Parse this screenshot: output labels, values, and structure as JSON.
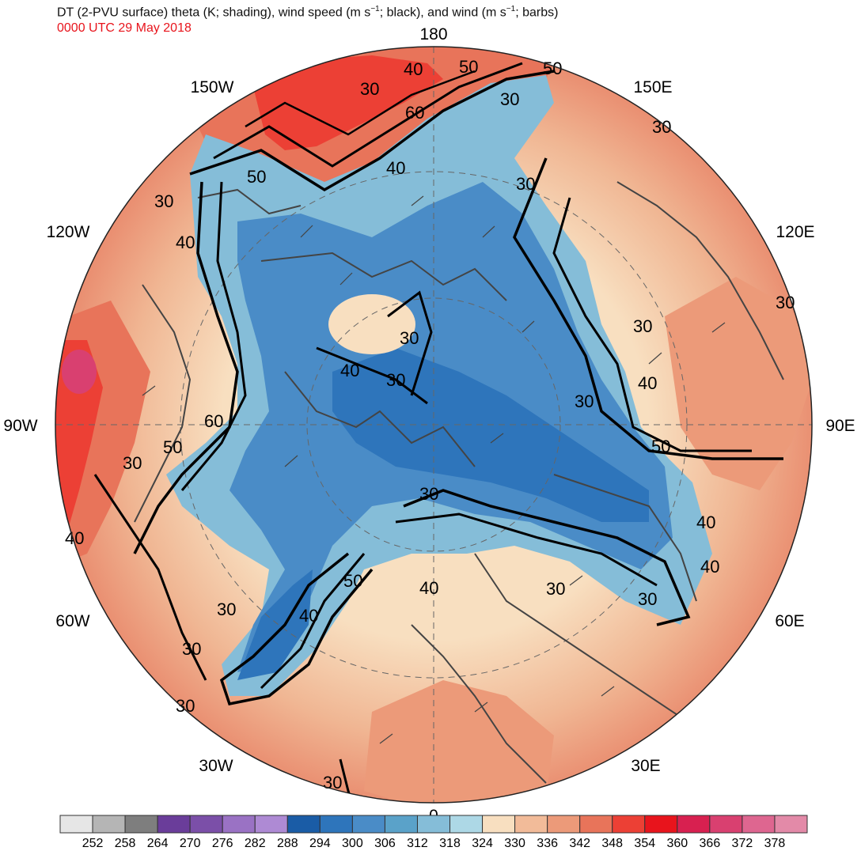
{
  "title": {
    "prefix": "DT (2-PVU surface) theta (K; shading), wind speed (m s",
    "exp1": "−1",
    "middle": "; black), and wind (m s",
    "exp2": "−1",
    "suffix": "; barbs)"
  },
  "valid_time": "0000 UTC 29 May 2018",
  "longitude_labels": [
    "180",
    "150E",
    "120E",
    "90E",
    "60E",
    "30E",
    "0",
    "30W",
    "60W",
    "90W",
    "120W",
    "150W"
  ],
  "contour_labels": [
    "40",
    "50",
    "50",
    "30",
    "60",
    "30",
    "40",
    "50",
    "30",
    "30",
    "40",
    "30",
    "30",
    "40",
    "30",
    "30",
    "30",
    "40",
    "30",
    "50",
    "60",
    "50",
    "30",
    "40",
    "30",
    "50",
    "40",
    "30",
    "40",
    "30",
    "30",
    "30",
    "40",
    "40",
    "30",
    "30"
  ],
  "colorbar": {
    "colors": [
      "#e6e6e6",
      "#b5b5b5",
      "#7e7e7e",
      "#6a3d9a",
      "#7b4fa8",
      "#9a72c4",
      "#ae8ad4",
      "#1a5ca6",
      "#2e75bb",
      "#4a8cc7",
      "#5aa2c9",
      "#85bdd8",
      "#add8e6",
      "#f8dfc0",
      "#f2bb99",
      "#ec9a79",
      "#e8745a",
      "#ec4035",
      "#e8141c",
      "#d82050",
      "#d94070",
      "#de6690",
      "#e38aa8"
    ],
    "ticks": [
      "252",
      "258",
      "264",
      "270",
      "276",
      "282",
      "288",
      "294",
      "300",
      "306",
      "312",
      "318",
      "324",
      "330",
      "336",
      "342",
      "348",
      "354",
      "360",
      "366",
      "372",
      "378"
    ]
  }
}
